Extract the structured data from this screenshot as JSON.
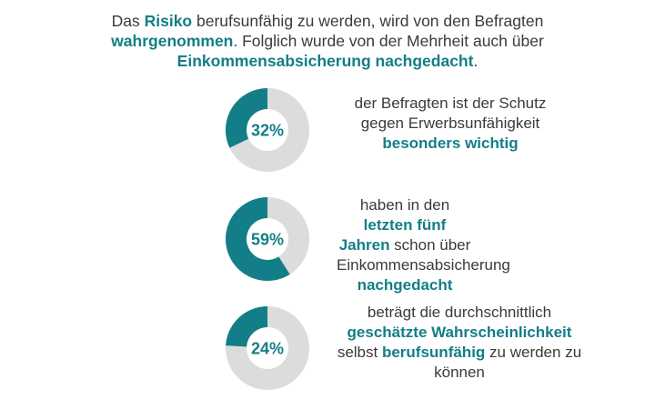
{
  "intro": [
    {
      "text": "Das ",
      "hl": false
    },
    {
      "text": "Risiko",
      "hl": true
    },
    {
      "text": " berufsunfähig zu werden, wird von den Befragten ",
      "hl": false
    },
    {
      "text": "wahrgenommen",
      "hl": true
    },
    {
      "text": ". Folglich wurde von der Mehrheit auch über ",
      "hl": false
    },
    {
      "text": "Einkommensabsicherung nachgedacht",
      "hl": true
    },
    {
      "text": ".",
      "hl": false
    }
  ],
  "colors": {
    "accent": "#137e87",
    "track": "#dcdcdc",
    "text": "#3a3a3a"
  },
  "chart_data": [
    {
      "type": "pie",
      "variant": "donut",
      "value": 32,
      "label": "32%",
      "caption": [
        {
          "text": "der Befragten ist der Schutz gegen Erwerbsunfähigkeit ",
          "hl": false
        },
        {
          "text": "besonders wichtig",
          "hl": true
        }
      ]
    },
    {
      "type": "pie",
      "variant": "donut",
      "value": 59,
      "label": "59%",
      "caption": [
        {
          "text": "haben in den ",
          "hl": false
        },
        {
          "text": "letzten fünf Jahren",
          "hl": true
        },
        {
          "text": " schon über Einkommensabsicherung ",
          "hl": false
        },
        {
          "text": "nachgedacht",
          "hl": true
        }
      ]
    },
    {
      "type": "pie",
      "variant": "donut",
      "value": 24,
      "label": "24%",
      "caption": [
        {
          "text": "beträgt die durchschnittlich ",
          "hl": false
        },
        {
          "text": "geschätzte Wahrscheinlichkeit",
          "hl": true
        },
        {
          "text": " selbst ",
          "hl": false
        },
        {
          "text": "berufsunfähig",
          "hl": true
        },
        {
          "text": " zu werden zu können",
          "hl": false
        }
      ]
    }
  ]
}
